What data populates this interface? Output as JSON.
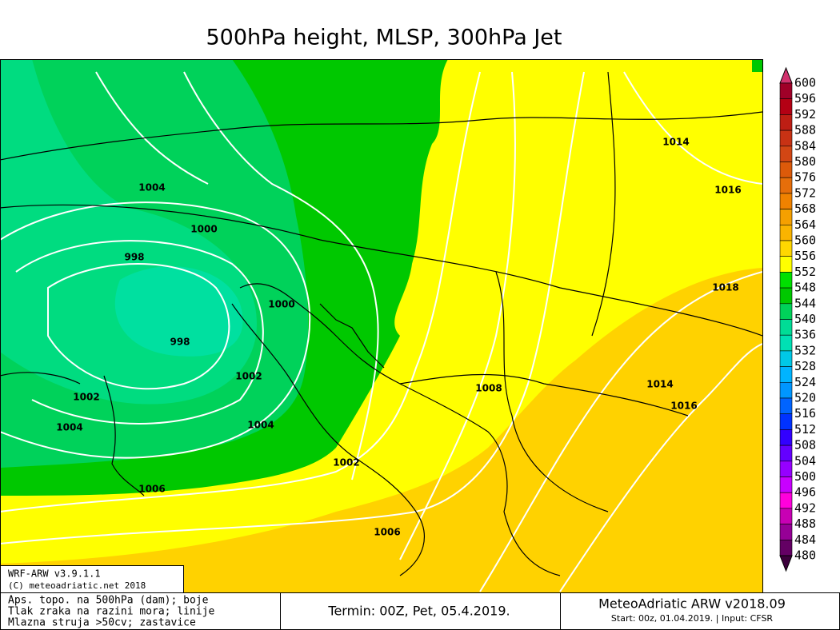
{
  "title": "500hPa height, MLSP, 300hPa Jet",
  "legend": {
    "levels": [
      600,
      596,
      592,
      588,
      584,
      580,
      576,
      572,
      568,
      564,
      560,
      556,
      552,
      548,
      544,
      540,
      536,
      532,
      528,
      524,
      520,
      516,
      512,
      508,
      504,
      500,
      496,
      492,
      488,
      484,
      480
    ],
    "colors": [
      "#d2326e",
      "#a00028",
      "#b40014",
      "#be1e14",
      "#c83214",
      "#d24614",
      "#dc5a0a",
      "#e66e0a",
      "#f08200",
      "#f5a000",
      "#fab400",
      "#ffd700",
      "#ffff00",
      "#00e000",
      "#00c800",
      "#00d25a",
      "#00dc96",
      "#00e0b4",
      "#00c8e6",
      "#00b4ff",
      "#0096ff",
      "#0064ff",
      "#0032ff",
      "#3200ff",
      "#6400ff",
      "#9600ff",
      "#c800ff",
      "#ff00dc",
      "#c800b4",
      "#960096",
      "#640064",
      "#3c003c"
    ]
  },
  "isobars": [
    "1014",
    "1016",
    "1004",
    "1000",
    "998",
    "1000",
    "998",
    "1018",
    "1002",
    "1008",
    "1014",
    "1016",
    "1002",
    "1004",
    "1004",
    "1002",
    "1006",
    "1006"
  ],
  "info_box": {
    "lines": [
      "WRF-ARW v3.9.1.1",
      "(C) meteoadriatic.net 2018"
    ]
  },
  "footer": {
    "left": [
      "Aps. topo. na 500hPa (dam); boje",
      "Tlak zraka na razini mora; linije",
      "Mlazna struja >50cv; zastavice"
    ],
    "center": "Termin: 00Z, Pet, 05.4.2019.",
    "right": {
      "title": "MeteoAdriatic ARW v2018.09",
      "subtitle": "Start: 00z, 01.04.2019. | Input: CFSR"
    }
  }
}
